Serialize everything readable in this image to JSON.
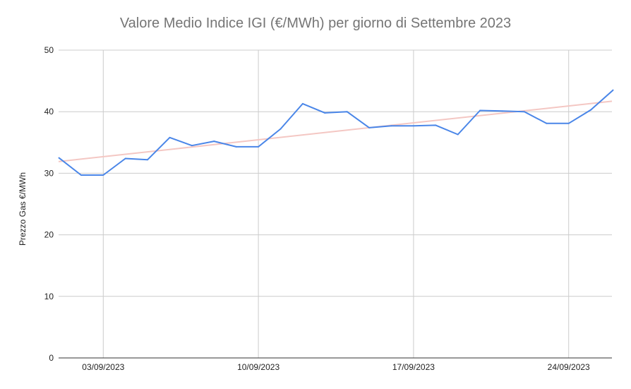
{
  "chart_data": {
    "type": "line",
    "title": "Valore Medio Indice IGI (€/MWh) per giorno di Settembre 2023",
    "xlabel": "",
    "ylabel": "Prezzo Gas €/MWh",
    "ylim": [
      0,
      50
    ],
    "y_ticks": [
      0,
      10,
      20,
      30,
      40,
      50
    ],
    "x_ticks": [
      "03/09/2023",
      "10/09/2023",
      "17/09/2023",
      "24/09/2023"
    ],
    "x": [
      "01/09/2023",
      "02/09/2023",
      "03/09/2023",
      "04/09/2023",
      "05/09/2023",
      "06/09/2023",
      "07/09/2023",
      "08/09/2023",
      "09/09/2023",
      "10/09/2023",
      "11/09/2023",
      "12/09/2023",
      "13/09/2023",
      "14/09/2023",
      "15/09/2023",
      "16/09/2023",
      "17/09/2023",
      "18/09/2023",
      "19/09/2023",
      "20/09/2023",
      "21/09/2023",
      "22/09/2023",
      "23/09/2023",
      "24/09/2023",
      "25/09/2023",
      "26/09/2023"
    ],
    "series": [
      {
        "values": [
          32.5,
          29.7,
          29.7,
          32.4,
          32.2,
          35.8,
          34.5,
          35.2,
          34.3,
          34.3,
          37.2,
          41.3,
          39.8,
          40.0,
          37.4,
          37.7,
          37.7,
          37.8,
          36.3,
          40.2,
          40.1,
          40.0,
          38.1,
          38.1,
          40.3,
          43.5
        ],
        "color": "#4a86e8"
      }
    ],
    "trendline": {
      "start": 31.9,
      "end": 41.7,
      "color": "#f4c7c3"
    },
    "grid": true,
    "legend": "none"
  }
}
